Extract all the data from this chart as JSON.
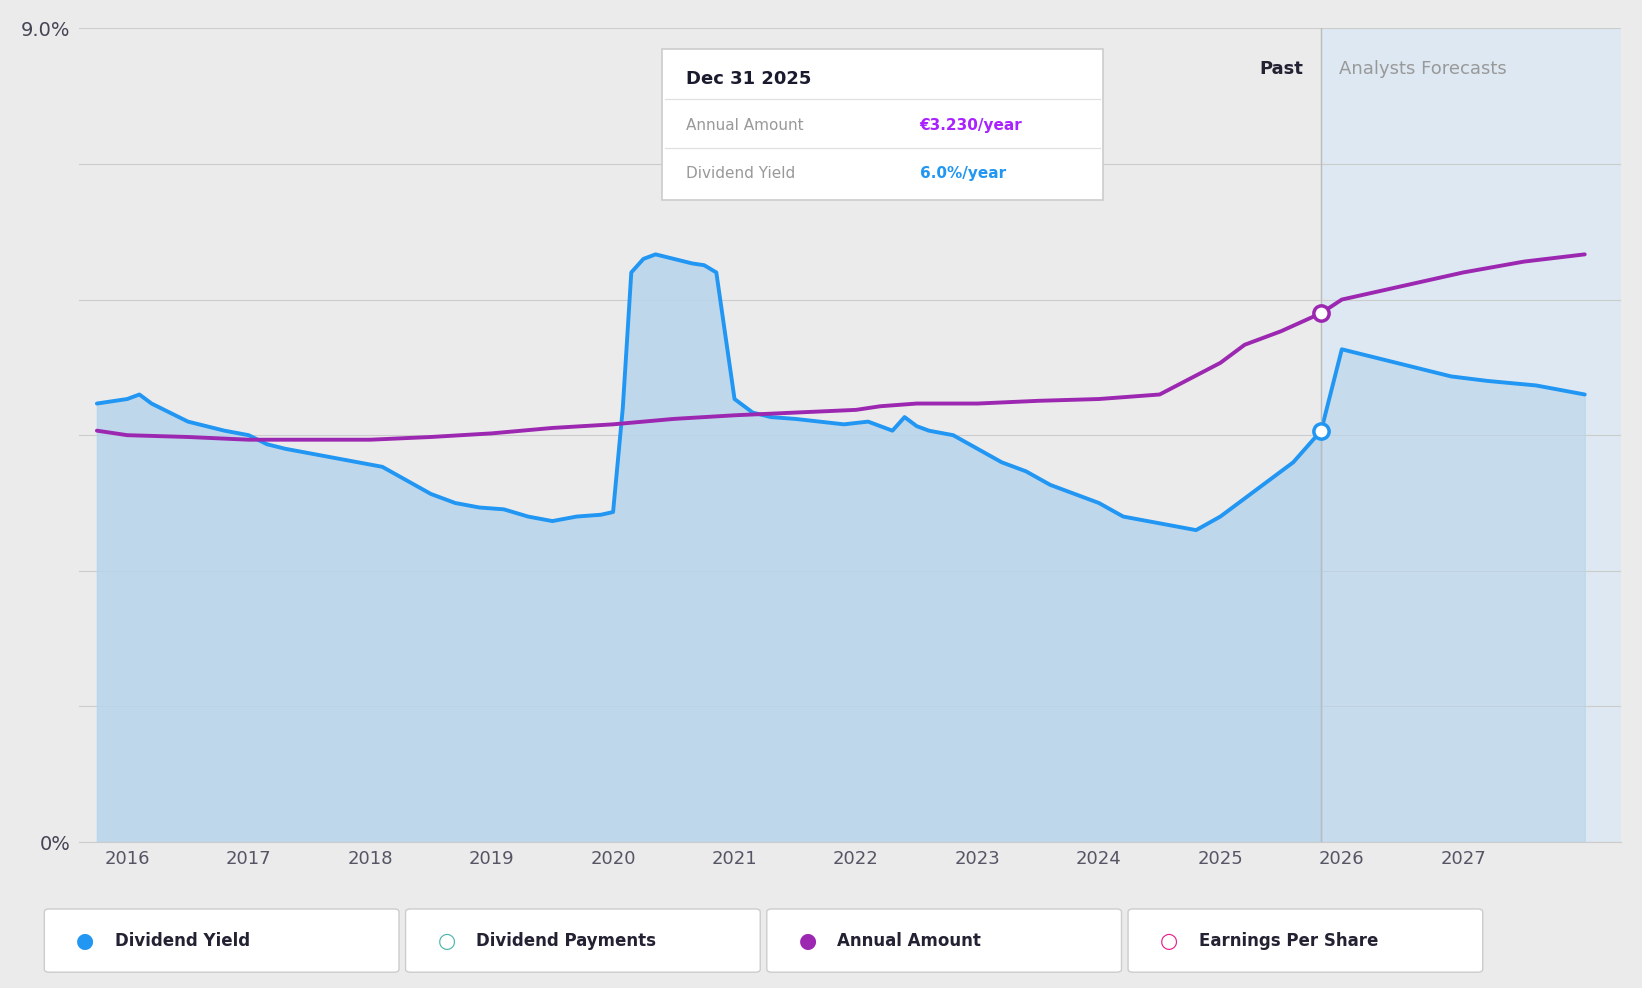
{
  "bg_color": "#ebebeb",
  "plot_bg_color": "#ebebeb",
  "x_min": 2015.6,
  "x_max": 2028.3,
  "y_min": 0.0,
  "y_max": 9.0,
  "x_ticks": [
    2016,
    2017,
    2018,
    2019,
    2020,
    2021,
    2022,
    2023,
    2024,
    2025,
    2026,
    2027
  ],
  "forecast_start": 2025.83,
  "past_label": "Past",
  "forecast_label": "Analysts Forecasts",
  "tooltip_title": "Dec 31 2025",
  "tooltip_annual_amount": "€3.230/year",
  "tooltip_dividend_yield": "6.0%/year",
  "tooltip_amount_color": "#aa22ff",
  "tooltip_yield_color": "#2196f3",
  "dividend_yield_color": "#2196f3",
  "annual_amount_color": "#9c27b0",
  "fill_color_top": "#b8d4eb",
  "fill_color_bottom": "#daeaf7",
  "forecast_bg_color": "#dde8f2",
  "line_width": 2.8,
  "legend_items": [
    {
      "label": "Dividend Yield",
      "color": "#2196f3",
      "filled": true
    },
    {
      "label": "Dividend Payments",
      "color": "#4db6ac",
      "filled": false
    },
    {
      "label": "Annual Amount",
      "color": "#9c27b0",
      "filled": true
    },
    {
      "label": "Earnings Per Share",
      "color": "#e91e8c",
      "filled": false
    }
  ],
  "dividend_yield_x": [
    2015.75,
    2016.0,
    2016.1,
    2016.2,
    2016.35,
    2016.5,
    2016.65,
    2016.8,
    2017.0,
    2017.15,
    2017.3,
    2017.5,
    2017.7,
    2017.9,
    2018.1,
    2018.3,
    2018.5,
    2018.7,
    2018.9,
    2019.1,
    2019.3,
    2019.5,
    2019.7,
    2019.9,
    2020.0,
    2020.08,
    2020.15,
    2020.25,
    2020.35,
    2020.5,
    2020.65,
    2020.75,
    2020.85,
    2021.0,
    2021.15,
    2021.3,
    2021.5,
    2021.7,
    2021.9,
    2022.1,
    2022.3,
    2022.4,
    2022.5,
    2022.6,
    2022.8,
    2023.0,
    2023.2,
    2023.4,
    2023.6,
    2023.8,
    2024.0,
    2024.2,
    2024.4,
    2024.6,
    2024.8,
    2025.0,
    2025.2,
    2025.4,
    2025.6,
    2025.83,
    2026.0,
    2026.3,
    2026.6,
    2026.9,
    2027.2,
    2027.6,
    2028.0
  ],
  "dividend_yield_y": [
    4.85,
    4.9,
    4.95,
    4.85,
    4.75,
    4.65,
    4.6,
    4.55,
    4.5,
    4.4,
    4.35,
    4.3,
    4.25,
    4.2,
    4.15,
    4.0,
    3.85,
    3.75,
    3.7,
    3.68,
    3.6,
    3.55,
    3.6,
    3.62,
    3.65,
    4.8,
    6.3,
    6.45,
    6.5,
    6.45,
    6.4,
    6.38,
    6.3,
    4.9,
    4.75,
    4.7,
    4.68,
    4.65,
    4.62,
    4.65,
    4.55,
    4.7,
    4.6,
    4.55,
    4.5,
    4.35,
    4.2,
    4.1,
    3.95,
    3.85,
    3.75,
    3.6,
    3.55,
    3.5,
    3.45,
    3.6,
    3.8,
    4.0,
    4.2,
    4.55,
    5.45,
    5.35,
    5.25,
    5.15,
    5.1,
    5.05,
    4.95
  ],
  "annual_amount_x": [
    2015.75,
    2016.0,
    2016.5,
    2017.0,
    2017.5,
    2018.0,
    2018.5,
    2019.0,
    2019.5,
    2020.0,
    2020.5,
    2021.0,
    2021.5,
    2022.0,
    2022.2,
    2022.5,
    2022.8,
    2023.0,
    2023.5,
    2024.0,
    2024.5,
    2025.0,
    2025.2,
    2025.5,
    2025.83,
    2026.0,
    2026.5,
    2027.0,
    2027.5,
    2028.0
  ],
  "annual_amount_y": [
    4.55,
    4.5,
    4.48,
    4.45,
    4.45,
    4.45,
    4.48,
    4.52,
    4.58,
    4.62,
    4.68,
    4.72,
    4.75,
    4.78,
    4.82,
    4.85,
    4.85,
    4.85,
    4.88,
    4.9,
    4.95,
    5.3,
    5.5,
    5.65,
    5.85,
    6.0,
    6.15,
    6.3,
    6.42,
    6.5
  ],
  "highlight_yield_x": 2025.83,
  "highlight_yield_y": 4.55,
  "highlight_amount_x": 2025.83,
  "highlight_amount_y": 5.85,
  "grid_lines_y": [
    0,
    1.5,
    3.0,
    4.5,
    6.0,
    7.5,
    9.0
  ]
}
